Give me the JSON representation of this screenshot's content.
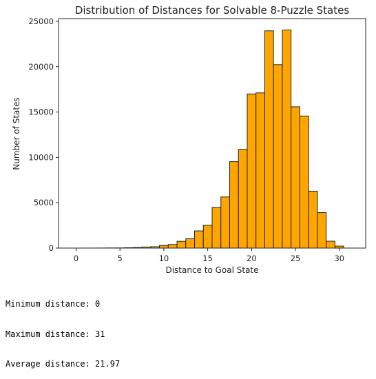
{
  "chart_data": {
    "type": "bar",
    "title": "Distribution of Distances for Solvable 8-Puzzle States",
    "xlabel": "Distance to Goal State",
    "ylabel": "Number of States",
    "xlim": [
      -2,
      33
    ],
    "ylim": [
      0,
      25300
    ],
    "x_ticks": [
      0,
      5,
      10,
      15,
      20,
      25,
      30
    ],
    "y_ticks": [
      0,
      5000,
      10000,
      15000,
      20000,
      25000
    ],
    "grid": false,
    "bar_color": "#ffa500",
    "edge_color": "#222222",
    "x": [
      0,
      1,
      2,
      3,
      4,
      5,
      6,
      7,
      8,
      9,
      10,
      11,
      12,
      13,
      14,
      15,
      16,
      17,
      18,
      19,
      20,
      21,
      22,
      23,
      24,
      25,
      26,
      27,
      28,
      29,
      30,
      31
    ],
    "values": [
      1,
      2,
      4,
      8,
      16,
      20,
      39,
      62,
      116,
      152,
      286,
      396,
      748,
      1024,
      1893,
      2512,
      4485,
      5638,
      9529,
      10878,
      16993,
      17110,
      23952,
      20224,
      24047,
      15578,
      14560,
      6274,
      3910,
      760,
      221,
      2
    ]
  },
  "stats": {
    "min_line": "Minimum distance: 0",
    "max_line": "Maximum distance: 31",
    "avg_line": "Average distance: 21.97"
  }
}
